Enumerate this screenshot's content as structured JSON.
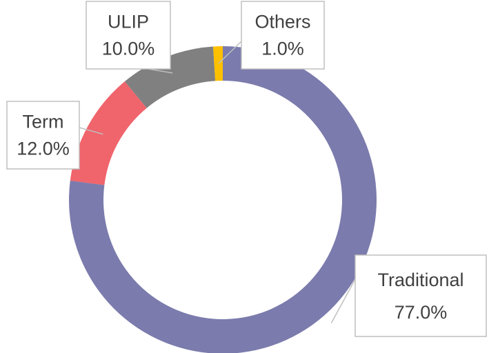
{
  "chart_data": {
    "type": "donut",
    "categories": [
      "Traditional",
      "Term",
      "ULIP",
      "Others"
    ],
    "values": [
      77,
      12,
      10,
      1
    ],
    "value_labels": [
      "77.0%",
      "12.0%",
      "10.0%",
      "1.0%"
    ],
    "colors": [
      "#7b7bad",
      "#f0646c",
      "#808080",
      "#ffc000"
    ]
  }
}
